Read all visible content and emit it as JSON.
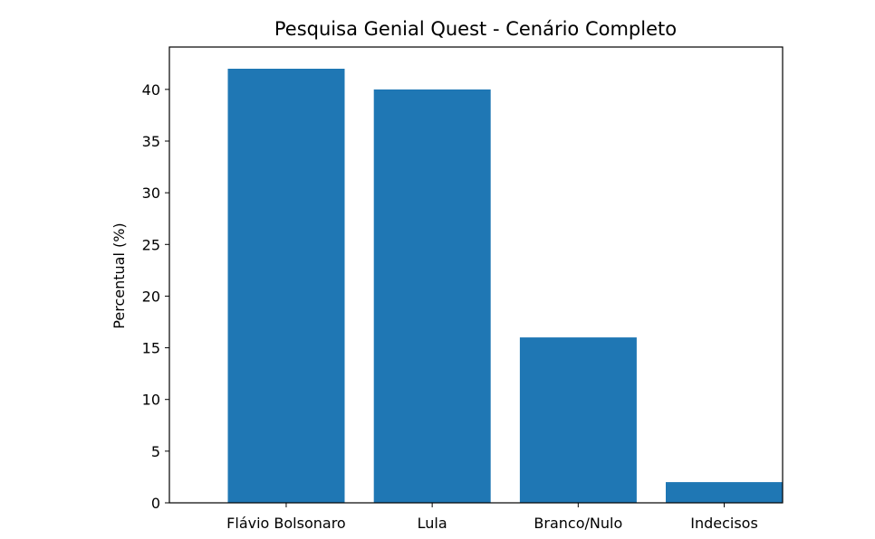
{
  "chart_data": {
    "type": "bar",
    "title": "Pesquisa Genial Quest - Cenário Completo",
    "xlabel": "",
    "ylabel": "Percentual (%)",
    "categories": [
      "Flávio Bolsonaro",
      "Lula",
      "Branco/Nulo",
      "Indecisos"
    ],
    "values": [
      42,
      40,
      16,
      2
    ],
    "ylim": [
      0,
      44.1
    ],
    "yticks": [
      "0",
      "5",
      "10",
      "15",
      "20",
      "25",
      "30",
      "35",
      "40"
    ],
    "bar_color": "#1f77b4",
    "grid": false,
    "legend": "none"
  }
}
